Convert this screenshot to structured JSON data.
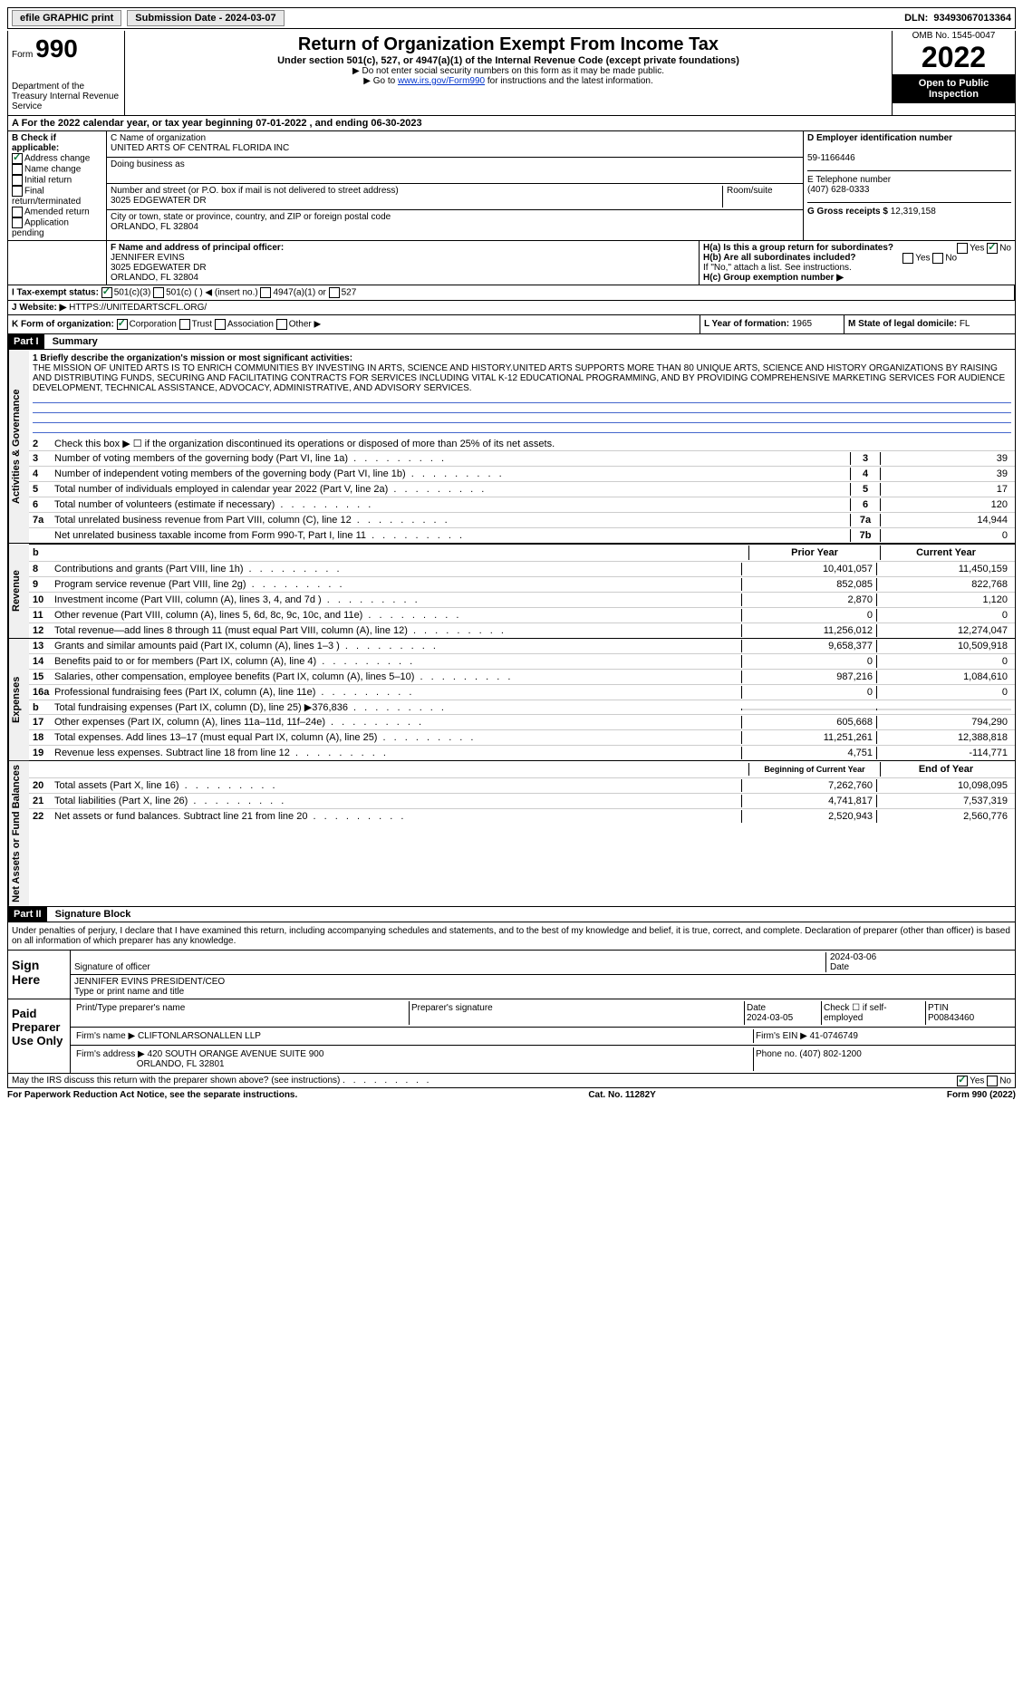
{
  "top": {
    "efile": "efile GRAPHIC print",
    "submission": "Submission Date - 2024-03-07",
    "dln_label": "DLN:",
    "dln": "93493067013364"
  },
  "header": {
    "form": "Form",
    "num": "990",
    "dept": "Department of the Treasury Internal Revenue Service",
    "title": "Return of Organization Exempt From Income Tax",
    "subtitle": "Under section 501(c), 527, or 4947(a)(1) of the Internal Revenue Code (except private foundations)",
    "note1": "▶ Do not enter social security numbers on this form as it may be made public.",
    "note2_pre": "▶ Go to ",
    "note2_link": "www.irs.gov/Form990",
    "note2_post": " for instructions and the latest information.",
    "omb": "OMB No. 1545-0047",
    "year": "2022",
    "open": "Open to Public Inspection"
  },
  "rowA": "A For the 2022 calendar year, or tax year beginning 07-01-2022    , and ending 06-30-2023",
  "b": {
    "label": "B Check if applicable:",
    "items": [
      "Address change",
      "Name change",
      "Initial return",
      "Final return/terminated",
      "Amended return",
      "Application pending"
    ]
  },
  "c": {
    "name_label": "C Name of organization",
    "name": "UNITED ARTS OF CENTRAL FLORIDA INC",
    "dba_label": "Doing business as",
    "street_label": "Number and street (or P.O. box if mail is not delivered to street address)",
    "room_label": "Room/suite",
    "street": "3025 EDGEWATER DR",
    "city_label": "City or town, state or province, country, and ZIP or foreign postal code",
    "city": "ORLANDO, FL  32804"
  },
  "d": {
    "label": "D Employer identification number",
    "val": "59-1166446",
    "e_label": "E Telephone number",
    "e_val": "(407) 628-0333",
    "g_label": "G Gross receipts $",
    "g_val": "12,319,158"
  },
  "f": {
    "label": "F  Name and address of principal officer:",
    "name": "JENNIFER EVINS",
    "addr1": "3025 EDGEWATER DR",
    "addr2": "ORLANDO, FL  32804"
  },
  "h": {
    "a": "H(a)  Is this a group return for subordinates?",
    "b": "H(b)  Are all subordinates included?",
    "bnote": "If \"No,\" attach a list. See instructions.",
    "c": "H(c)  Group exemption number ▶"
  },
  "i": {
    "label": "I  Tax-exempt status:",
    "opts": [
      "501(c)(3)",
      "501(c) (  ) ◀ (insert no.)",
      "4947(a)(1) or",
      "527"
    ]
  },
  "j": {
    "label": "J Website: ▶",
    "val": "HTTPS://UNITEDARTSCFL.ORG/"
  },
  "k": {
    "label": "K Form of organization:",
    "opts": [
      "Corporation",
      "Trust",
      "Association",
      "Other ▶"
    ]
  },
  "l": {
    "label": "L Year of formation:",
    "val": "1965"
  },
  "m": {
    "label": "M State of legal domicile:",
    "val": "FL"
  },
  "part1": {
    "header": "Part I",
    "title": "Summary",
    "vert1": "Activities & Governance",
    "vert2": "Revenue",
    "vert3": "Expenses",
    "vert4": "Net Assets or Fund Balances",
    "l1_label": "1  Briefly describe the organization's mission or most significant activities:",
    "mission": "THE MISSION OF UNITED ARTS IS TO ENRICH COMMUNITIES BY INVESTING IN ARTS, SCIENCE AND HISTORY.UNITED ARTS SUPPORTS MORE THAN 80 UNIQUE ARTS, SCIENCE AND HISTORY ORGANIZATIONS BY RAISING AND DISTRIBUTING FUNDS, SECURING AND FACILITATING CONTRACTS FOR SERVICES INCLUDING VITAL K-12 EDUCATIONAL PROGRAMMING, AND BY PROVIDING COMPREHENSIVE MARKETING SERVICES FOR AUDIENCE DEVELOPMENT, TECHNICAL ASSISTANCE, ADVOCACY, ADMINISTRATIVE, AND ADVISORY SERVICES.",
    "l2": "Check this box ▶ ☐  if the organization discontinued its operations or disposed of more than 25% of its net assets.",
    "lines_gov": [
      {
        "n": "3",
        "t": "Number of voting members of the governing body (Part VI, line 1a)",
        "box": "3",
        "v": "39"
      },
      {
        "n": "4",
        "t": "Number of independent voting members of the governing body (Part VI, line 1b)",
        "box": "4",
        "v": "39"
      },
      {
        "n": "5",
        "t": "Total number of individuals employed in calendar year 2022 (Part V, line 2a)",
        "box": "5",
        "v": "17"
      },
      {
        "n": "6",
        "t": "Total number of volunteers (estimate if necessary)",
        "box": "6",
        "v": "120"
      },
      {
        "n": "7a",
        "t": "Total unrelated business revenue from Part VIII, column (C), line 12",
        "box": "7a",
        "v": "14,944"
      },
      {
        "n": "",
        "t": "Net unrelated business taxable income from Form 990-T, Part I, line 11",
        "box": "7b",
        "v": "0"
      }
    ],
    "col_prior": "Prior Year",
    "col_curr": "Current Year",
    "lines_rev": [
      {
        "n": "8",
        "t": "Contributions and grants (Part VIII, line 1h)",
        "p": "10,401,057",
        "c": "11,450,159"
      },
      {
        "n": "9",
        "t": "Program service revenue (Part VIII, line 2g)",
        "p": "852,085",
        "c": "822,768"
      },
      {
        "n": "10",
        "t": "Investment income (Part VIII, column (A), lines 3, 4, and 7d )",
        "p": "2,870",
        "c": "1,120"
      },
      {
        "n": "11",
        "t": "Other revenue (Part VIII, column (A), lines 5, 6d, 8c, 9c, 10c, and 11e)",
        "p": "0",
        "c": "0"
      },
      {
        "n": "12",
        "t": "Total revenue—add lines 8 through 11 (must equal Part VIII, column (A), line 12)",
        "p": "11,256,012",
        "c": "12,274,047"
      }
    ],
    "lines_exp": [
      {
        "n": "13",
        "t": "Grants and similar amounts paid (Part IX, column (A), lines 1–3 )",
        "p": "9,658,377",
        "c": "10,509,918"
      },
      {
        "n": "14",
        "t": "Benefits paid to or for members (Part IX, column (A), line 4)",
        "p": "0",
        "c": "0"
      },
      {
        "n": "15",
        "t": "Salaries, other compensation, employee benefits (Part IX, column (A), lines 5–10)",
        "p": "987,216",
        "c": "1,084,610"
      },
      {
        "n": "16a",
        "t": "Professional fundraising fees (Part IX, column (A), line 11e)",
        "p": "0",
        "c": "0"
      },
      {
        "n": "b",
        "t": "Total fundraising expenses (Part IX, column (D), line 25) ▶376,836",
        "p": "",
        "c": "",
        "shaded": true
      },
      {
        "n": "17",
        "t": "Other expenses (Part IX, column (A), lines 11a–11d, 11f–24e)",
        "p": "605,668",
        "c": "794,290"
      },
      {
        "n": "18",
        "t": "Total expenses. Add lines 13–17 (must equal Part IX, column (A), line 25)",
        "p": "11,251,261",
        "c": "12,388,818"
      },
      {
        "n": "19",
        "t": "Revenue less expenses. Subtract line 18 from line 12",
        "p": "4,751",
        "c": "-114,771"
      }
    ],
    "col_begin": "Beginning of Current Year",
    "col_end": "End of Year",
    "lines_net": [
      {
        "n": "20",
        "t": "Total assets (Part X, line 16)",
        "p": "7,262,760",
        "c": "10,098,095"
      },
      {
        "n": "21",
        "t": "Total liabilities (Part X, line 26)",
        "p": "4,741,817",
        "c": "7,537,319"
      },
      {
        "n": "22",
        "t": "Net assets or fund balances. Subtract line 21 from line 20",
        "p": "2,520,943",
        "c": "2,560,776"
      }
    ]
  },
  "part2": {
    "header": "Part II",
    "title": "Signature Block",
    "decl": "Under penalties of perjury, I declare that I have examined this return, including accompanying schedules and statements, and to the best of my knowledge and belief, it is true, correct, and complete. Declaration of preparer (other than officer) is based on all information of which preparer has any knowledge.",
    "sign_here": "Sign Here",
    "sig_officer": "Signature of officer",
    "date": "Date",
    "sig_date": "2024-03-06",
    "officer_name": "JENNIFER EVINS PRESIDENT/CEO",
    "type_name": "Type or print name and title",
    "paid": "Paid Preparer Use Only",
    "prep_name_label": "Print/Type preparer's name",
    "prep_sig_label": "Preparer's signature",
    "prep_date": "2024-03-05",
    "check_self": "Check ☐ if self-employed",
    "ptin_label": "PTIN",
    "ptin": "P00843460",
    "firm_name_label": "Firm's name    ▶",
    "firm_name": "CLIFTONLARSONALLEN LLP",
    "firm_ein_label": "Firm's EIN ▶",
    "firm_ein": "41-0746749",
    "firm_addr_label": "Firm's address ▶",
    "firm_addr": "420 SOUTH ORANGE AVENUE SUITE 900",
    "firm_city": "ORLANDO, FL  32801",
    "phone_label": "Phone no.",
    "phone": "(407) 802-1200",
    "discuss": "May the IRS discuss this return with the preparer shown above? (see instructions)"
  },
  "footer": {
    "left": "For Paperwork Reduction Act Notice, see the separate instructions.",
    "mid": "Cat. No. 11282Y",
    "right": "Form 990 (2022)"
  }
}
